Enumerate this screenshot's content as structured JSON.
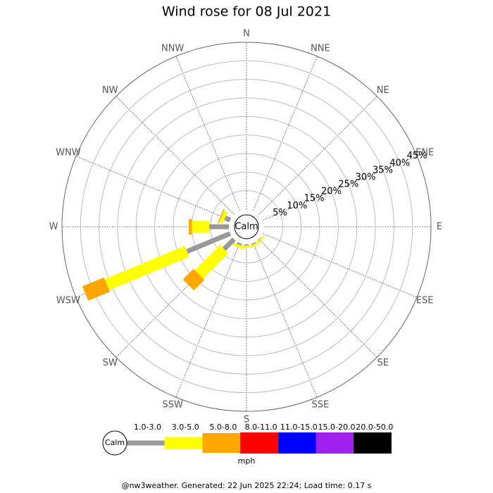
{
  "chart_data": {
    "type": "windrose",
    "title": "Wind rose for 08 Jul 2021",
    "categories": [
      "N",
      "NNE",
      "NE",
      "ENE",
      "E",
      "ESE",
      "SE",
      "SSE",
      "S",
      "SSW",
      "SW",
      "WSW",
      "W",
      "WNW",
      "NW",
      "NNW"
    ],
    "calm_label": "Calm",
    "unit_label": "mph",
    "footer": "@nw3weather. Generated: 22 Jun 2025 22:24; Load time: 0.17 s",
    "rlim": [
      0,
      45
    ],
    "rticks": [
      {
        "value": 5,
        "label": "5%"
      },
      {
        "value": 10,
        "label": "10%"
      },
      {
        "value": 15,
        "label": "15%"
      },
      {
        "value": 20,
        "label": "20%"
      },
      {
        "value": 25,
        "label": "25%"
      },
      {
        "value": 30,
        "label": "30%"
      },
      {
        "value": 35,
        "label": "35%"
      },
      {
        "value": 40,
        "label": "40%"
      },
      {
        "value": 45,
        "label": "45%"
      }
    ],
    "series": [
      {
        "name": "1.0-3.0",
        "color": "#999999",
        "values": [
          0,
          0,
          0,
          0,
          0,
          0,
          0.2,
          0.3,
          0.3,
          0.5,
          3.8,
          12.6,
          5.3,
          1.5,
          0,
          0
        ]
      },
      {
        "name": "3.0-5.0",
        "color": "#ffff00",
        "values": [
          0,
          0,
          0,
          0,
          0,
          0,
          0.4,
          0.5,
          0.6,
          0.7,
          9.6,
          23.4,
          4.7,
          1.0,
          0,
          0
        ]
      },
      {
        "name": "5.0-8.0",
        "color": "#ffa500",
        "values": [
          0,
          0,
          0,
          0,
          0,
          0,
          0,
          0,
          0,
          0,
          4.0,
          6.3,
          0.8,
          0.3,
          0,
          0
        ]
      },
      {
        "name": "8.0-11.0",
        "color": "#ff0000",
        "values": [
          0,
          0,
          0,
          0,
          0,
          0,
          0,
          0,
          0,
          0,
          0,
          0,
          0,
          0,
          0,
          0
        ]
      },
      {
        "name": "11.0-15.0",
        "color": "#0000ff",
        "values": [
          0,
          0,
          0,
          0,
          0,
          0,
          0,
          0,
          0,
          0,
          0,
          0,
          0,
          0,
          0,
          0
        ]
      },
      {
        "name": "15.0-20.0",
        "color": "#a020f0",
        "values": [
          0,
          0,
          0,
          0,
          0,
          0,
          0,
          0,
          0,
          0,
          0,
          0,
          0,
          0,
          0,
          0
        ]
      },
      {
        "name": "20.0-50.0",
        "color": "#000000",
        "values": [
          0,
          0,
          0,
          0,
          0,
          0,
          0,
          0,
          0,
          0,
          0,
          0,
          0,
          0,
          0,
          0
        ]
      }
    ]
  }
}
